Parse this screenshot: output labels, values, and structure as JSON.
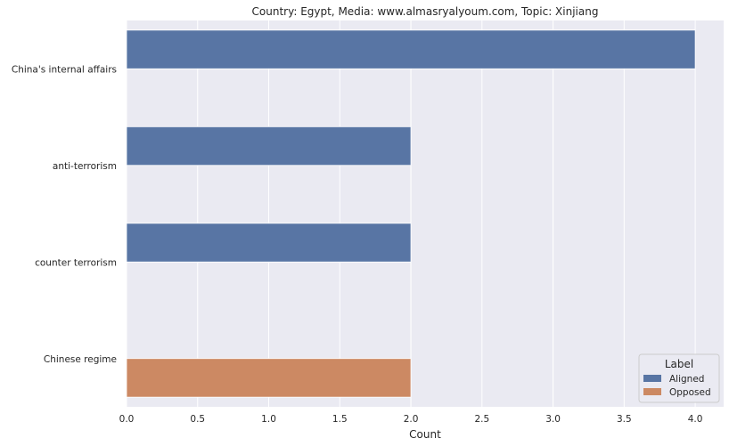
{
  "chart_data": {
    "type": "bar",
    "orientation": "horizontal",
    "title": "Country: Egypt, Media: www.almasryalyoum.com, Topic: Xinjiang",
    "xlabel": "Count",
    "ylabel": "",
    "xlim": [
      0,
      4.2
    ],
    "xticks": [
      "0.0",
      "0.5",
      "1.0",
      "1.5",
      "2.0",
      "2.5",
      "3.0",
      "3.5",
      "4.0"
    ],
    "categories": [
      "China's internal affairs",
      "anti-terrorism",
      "counter terrorism",
      "Chinese regime"
    ],
    "series": [
      {
        "name": "Aligned",
        "color": "#5875a4",
        "values": [
          4,
          2,
          2,
          null
        ]
      },
      {
        "name": "Opposed",
        "color": "#cc8963",
        "values": [
          null,
          null,
          null,
          2
        ]
      }
    ],
    "legend": {
      "title": "Label",
      "placement": "lower-right"
    },
    "grid": true,
    "background": "#eaeaf2"
  }
}
